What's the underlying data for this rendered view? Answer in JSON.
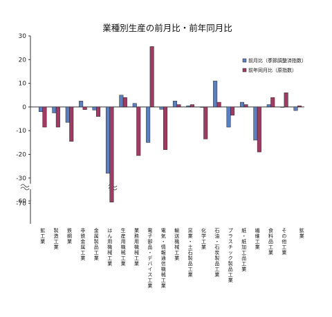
{
  "chart_data": {
    "type": "bar",
    "title": "業種別生産の前月比・前年同月比",
    "ylim": [
      -70,
      30
    ],
    "yticks": [
      30,
      20,
      10,
      0,
      -10,
      -20,
      -30,
      -60,
      -70
    ],
    "axis_break": true,
    "grid": false,
    "legend_position": "upper-right",
    "categories": [
      "鉱工業",
      "製造工業",
      "鉄鋼業",
      "非鉄金属工業",
      "金属製品工業",
      "はん用機械工業",
      "生産用機械工業",
      "業務用機械工業",
      "電子部品・デバイス工業",
      "電気・情報通信機械工業",
      "輸送機械工業",
      "窯業・土石製品工業",
      "化学工業",
      "石油・石炭製品工業",
      "プラスチック製品工業",
      "紙・紙加工品工業",
      "繊維工業",
      "食料品工業",
      "その他工業",
      "鉱業"
    ],
    "series": [
      {
        "name": "前月比（季節調整済指数）",
        "color": "#5b7fbf",
        "values": [
          -2,
          -2.5,
          -6.5,
          2.5,
          -1.3,
          -28,
          5,
          1.5,
          -15,
          -1,
          2.5,
          0.5,
          0,
          11,
          -8.5,
          2,
          -14,
          1,
          0,
          -1.5
        ]
      },
      {
        "name": "前年同月比（原指数）",
        "color": "#a03b63",
        "values": [
          -8.5,
          -8.5,
          -14.5,
          -1.1,
          -4,
          -65,
          4,
          -20.5,
          25.5,
          -18,
          1,
          1,
          -13.5,
          2,
          -3.5,
          1,
          -19,
          4,
          6,
          0.5
        ]
      }
    ]
  }
}
